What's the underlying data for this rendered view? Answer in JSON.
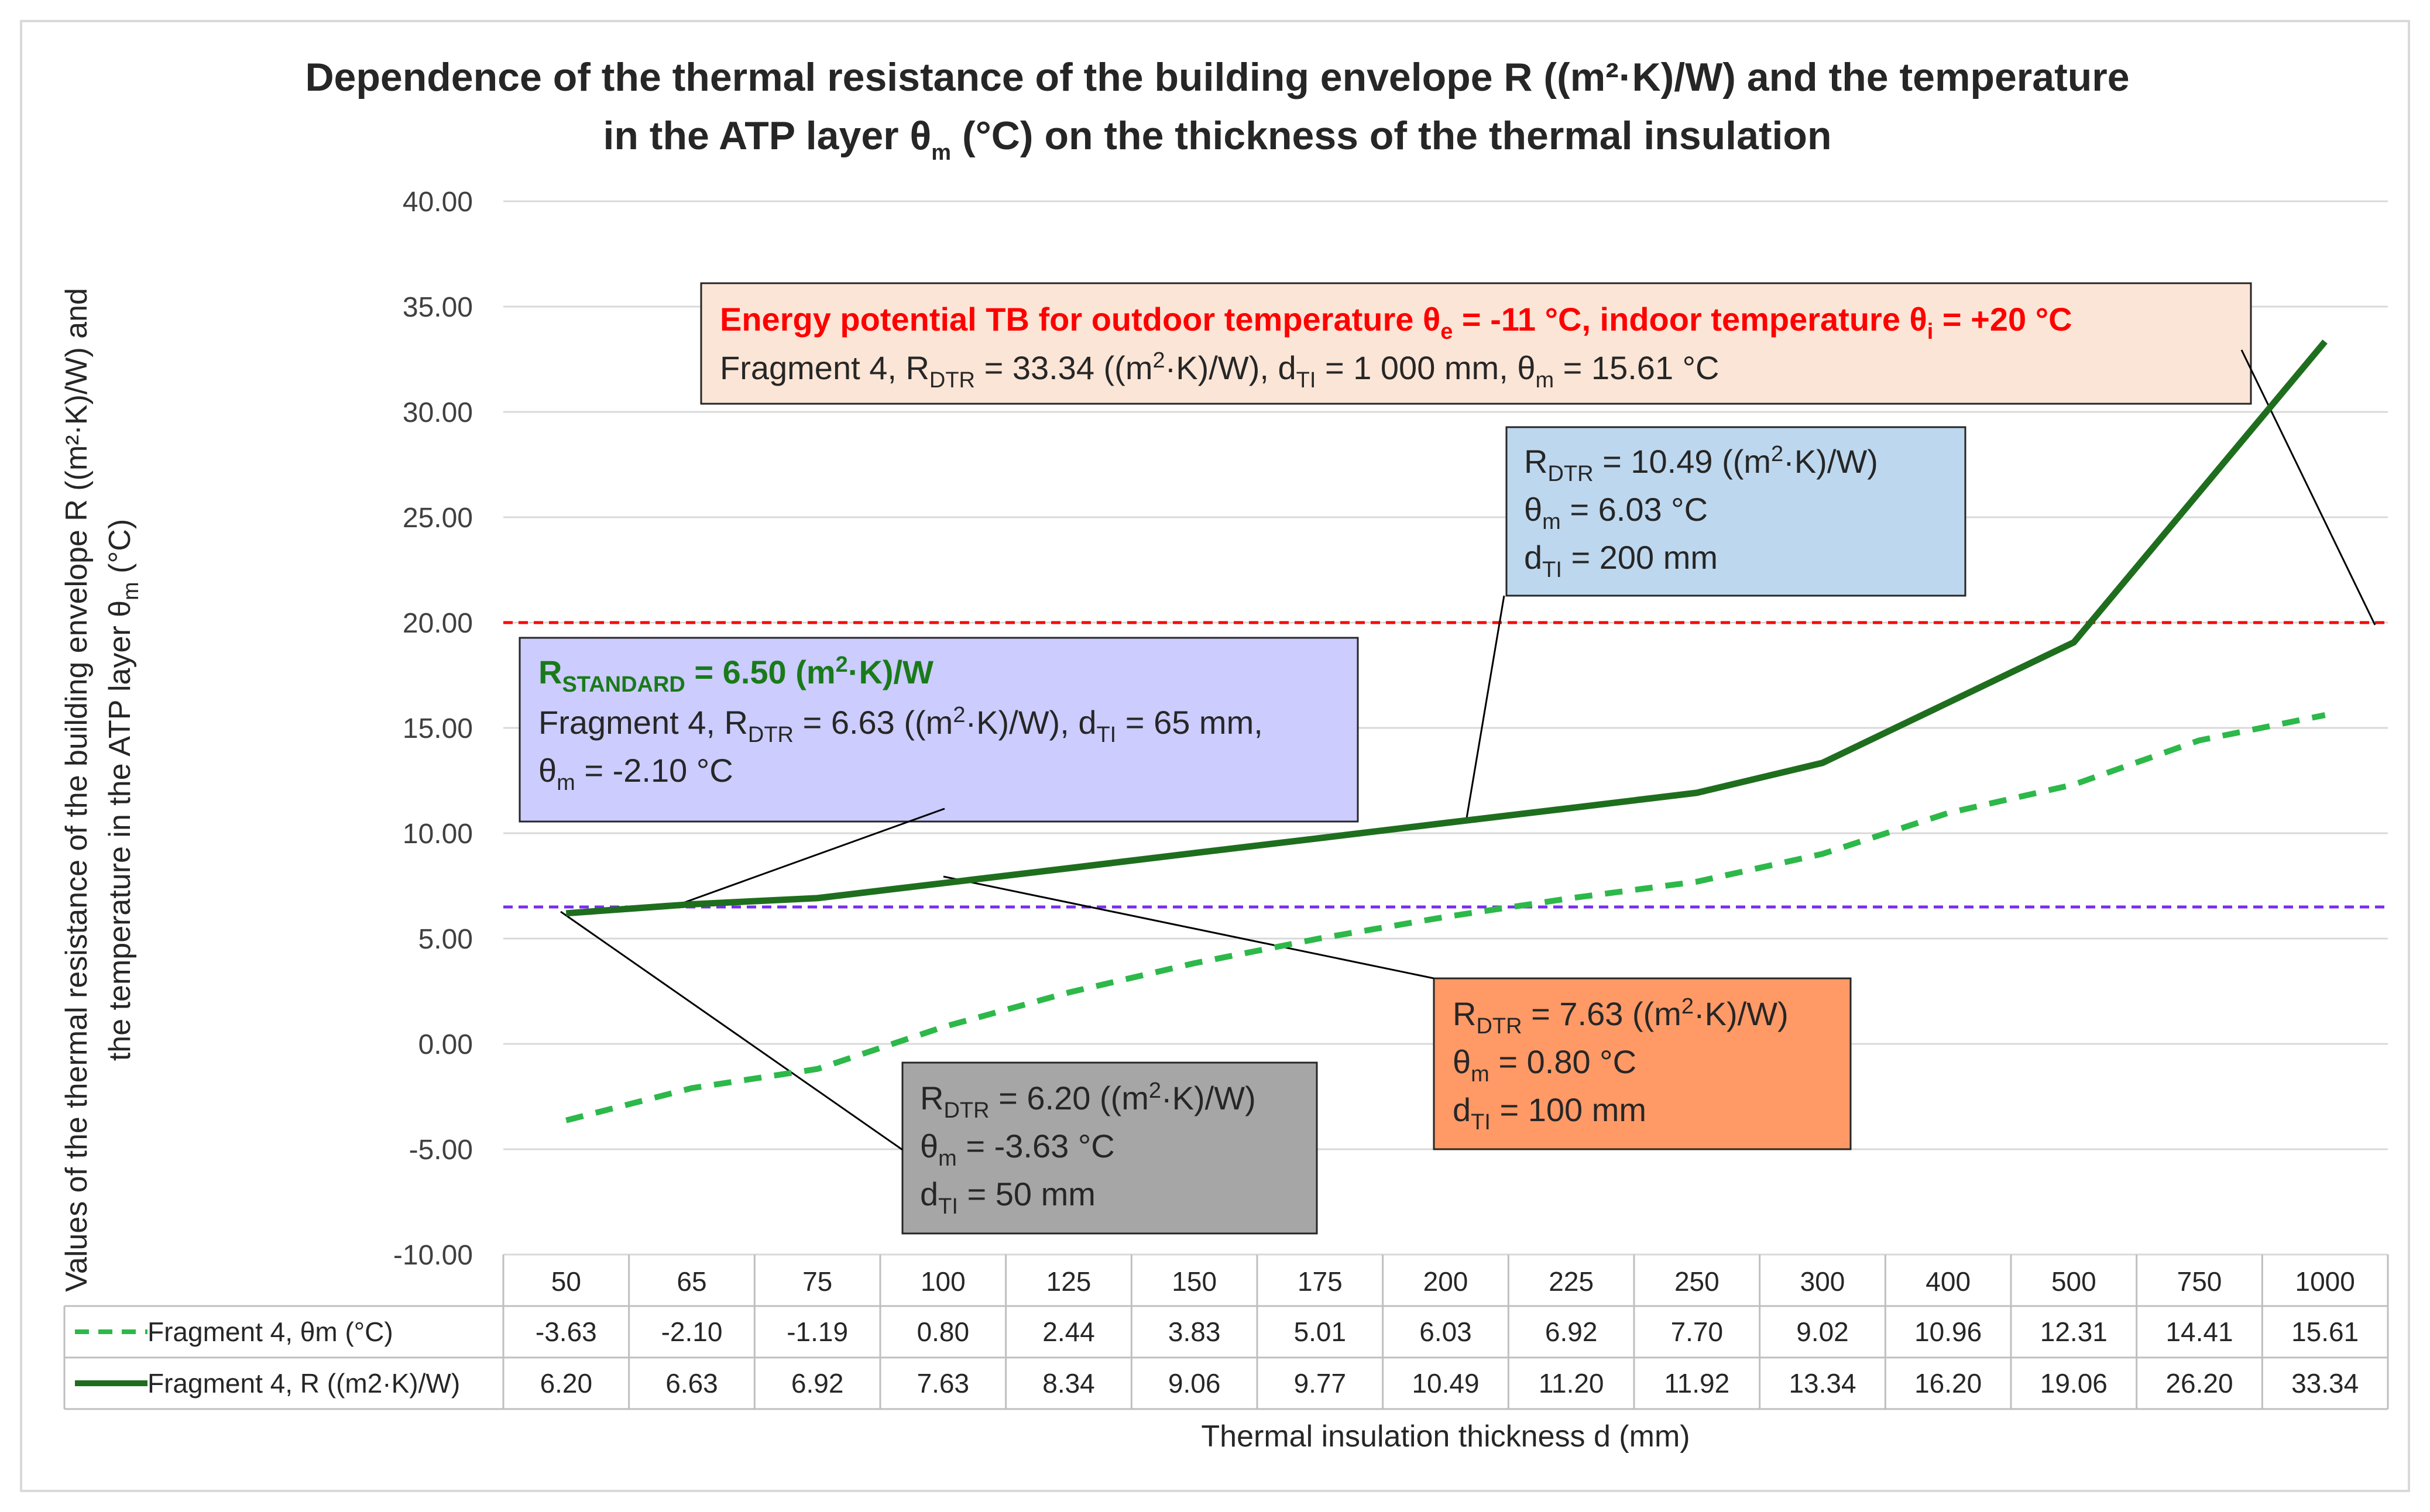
{
  "chart_data": {
    "type": "line",
    "title_line1": "Dependence of the thermal resistance of the building envelope R ((m²·K)/W) and the temperature",
    "title_line2_a": "in the ATP layer θ",
    "title_line2_sub": "m",
    "title_line2_b": " (°C) on the thickness of the thermal insulation",
    "ylabel_line1": "Values of the thermal resistance of the building envelope R ((m²·K)/W) and",
    "ylabel_line2_a": "the temperature in the ATP layer θ",
    "ylabel_line2_sub": "m",
    "ylabel_line2_b": " (°C)",
    "xlabel": "Thermal insulation thickness d (mm)",
    "ylim": [
      -10,
      40
    ],
    "ytick_values": [
      -10,
      -5,
      0,
      5,
      10,
      15,
      20,
      25,
      30,
      35,
      40
    ],
    "ytick_labels": [
      "-10.00",
      "-5.00",
      "0.00",
      "5.00",
      "10.00",
      "15.00",
      "20.00",
      "25.00",
      "30.00",
      "35.00",
      "40.00"
    ],
    "grid": true,
    "categories": [
      "50",
      "65",
      "75",
      "100",
      "125",
      "150",
      "175",
      "200",
      "225",
      "250",
      "300",
      "400",
      "500",
      "750",
      "1000"
    ],
    "series": [
      {
        "name": "Fragment 4, θm (°C)",
        "style": "dashed",
        "color": "#2db84a",
        "values": [
          -3.63,
          -2.1,
          -1.19,
          0.8,
          2.44,
          3.83,
          5.01,
          6.03,
          6.92,
          7.7,
          9.02,
          10.96,
          12.31,
          14.41,
          15.61
        ],
        "labels": [
          "-3.63",
          "-2.10",
          "-1.19",
          "0.80",
          "2.44",
          "3.83",
          "5.01",
          "6.03",
          "6.92",
          "7.70",
          "9.02",
          "10.96",
          "12.31",
          "14.41",
          "15.61"
        ]
      },
      {
        "name": "Fragment 4, R ((m2·K)/W)",
        "style": "solid",
        "color": "#1e6e1e",
        "values": [
          6.2,
          6.63,
          6.92,
          7.63,
          8.34,
          9.06,
          9.77,
          10.49,
          11.2,
          11.92,
          13.34,
          16.2,
          19.06,
          26.2,
          33.34
        ],
        "labels": [
          "6.20",
          "6.63",
          "6.92",
          "7.63",
          "8.34",
          "9.06",
          "9.77",
          "10.49",
          "11.20",
          "11.92",
          "13.34",
          "16.20",
          "19.06",
          "26.20",
          "33.34"
        ]
      }
    ],
    "reference_lines": [
      {
        "name": "indoor-temperature-line",
        "value": 20.0,
        "color": "#ff0000"
      },
      {
        "name": "r-standard-line",
        "value": 6.5,
        "color": "#7a2cf0"
      }
    ],
    "annotations": {
      "energy": {
        "line1": "Energy potential TB for outdoor temperature θ",
        "line1_sub_e": "e",
        "line1_mid": " = -11 °C, indoor temperature θ",
        "line1_sub_i": "i",
        "line1_end": " = +20 °C",
        "line2_a": "Fragment 4, R",
        "line2_sub": "DTR",
        "line2_b": " = 33.34 ((m",
        "line2_sup": "2",
        "line2_c": "·K)/W), d",
        "line2_sub2": "TI",
        "line2_d": " = 1 000 mm, θ",
        "line2_sub3": "m",
        "line2_e": " = 15.61 °C"
      },
      "rdtr_200": {
        "l1_a": "R",
        "l1_sub": "DTR",
        "l1_b": " = 10.49 ((m",
        "l1_sup": "2",
        "l1_c": "·K)/W)",
        "l2_a": "θ",
        "l2_sub": "m",
        "l2_b": " = 6.03 °C",
        "l3_a": "d",
        "l3_sub": "TI",
        "l3_b": " = 200 mm"
      },
      "standard": {
        "l1_a": "R",
        "l1_sub": "STANDARD",
        "l1_b": " = 6.50 (m",
        "l1_sup": "2",
        "l1_c": "·K)/W",
        "l2_a": "Fragment 4, R",
        "l2_sub": "DTR",
        "l2_b": " = 6.63 ((m",
        "l2_sup": "2",
        "l2_c": "·K)/W), d",
        "l2_sub2": "TI",
        "l2_d": " = 65 mm,",
        "l3_a": "θ",
        "l3_sub": "m",
        "l3_b": " = -2.10 °C"
      },
      "rdtr_100": {
        "l1_a": "R",
        "l1_sub": "DTR",
        "l1_b": " = 7.63 ((m",
        "l1_sup": "2",
        "l1_c": "·K)/W)",
        "l2_a": "θ",
        "l2_sub": "m",
        "l2_b": " = 0.80 °C",
        "l3_a": "d",
        "l3_sub": "TI",
        "l3_b": " = 100 mm"
      },
      "rdtr_50": {
        "l1_a": "R",
        "l1_sub": "DTR",
        "l1_b": " = 6.20 ((m",
        "l1_sup": "2",
        "l1_c": "·K)/W)",
        "l2_a": "θ",
        "l2_sub": "m",
        "l2_b": " = -3.63 °C",
        "l3_a": "d",
        "l3_sub": "TI",
        "l3_b": " = 50 mm"
      }
    },
    "colors": {
      "energy_box": "#fbe5d6",
      "rdtr200_box": "#bdd7ee",
      "standard_box": "#ccccff",
      "rdtr100_box": "#ff9966",
      "rdtr50_box": "#a6a6a6",
      "grid": "#d9d9d9"
    }
  }
}
